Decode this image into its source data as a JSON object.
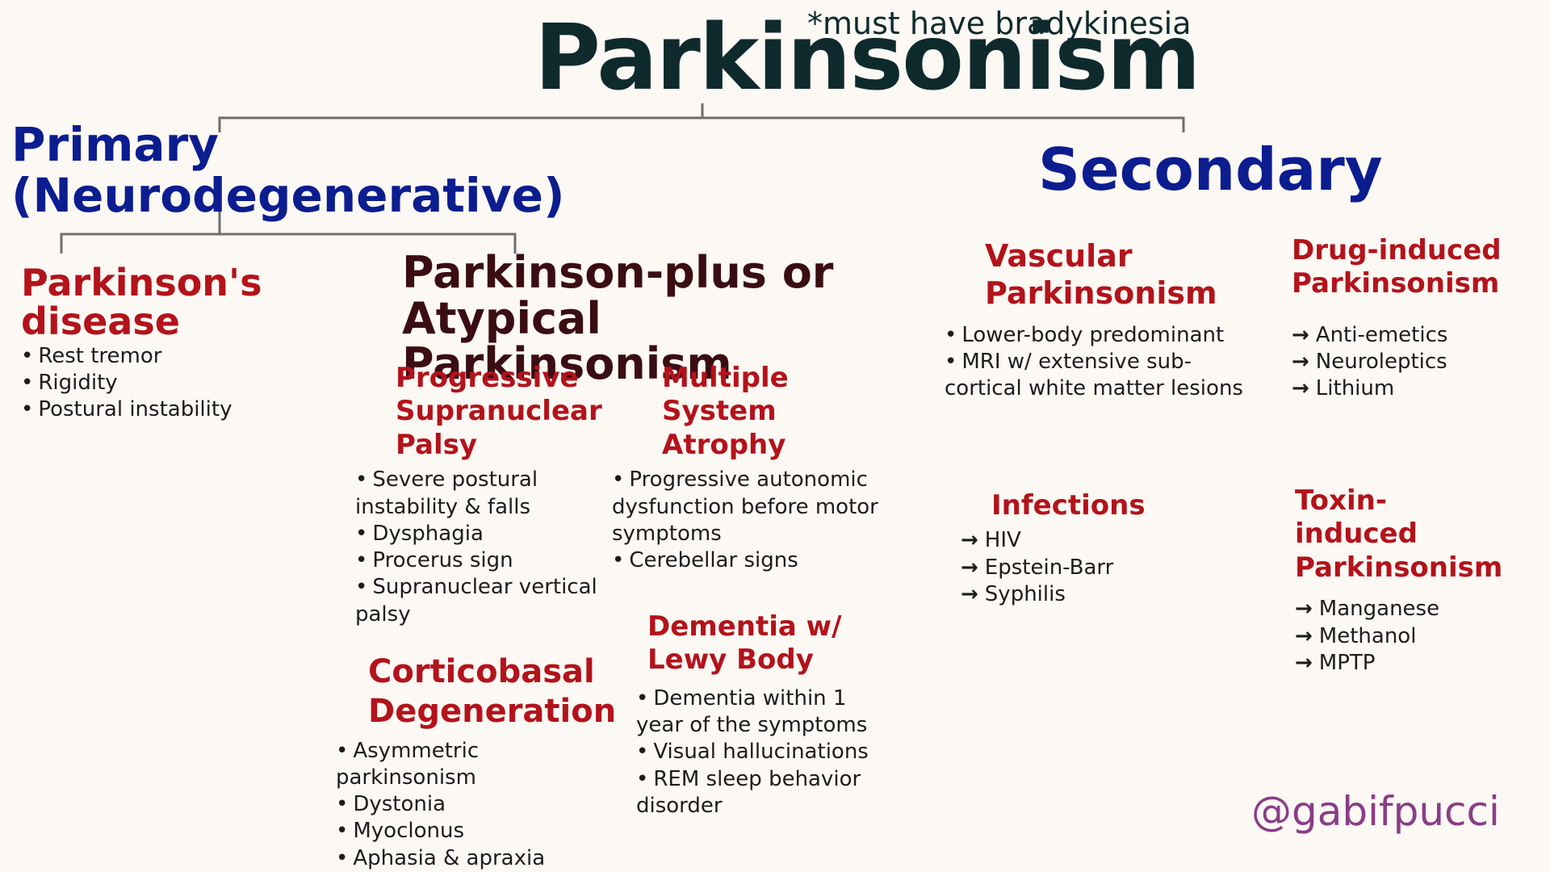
{
  "colors": {
    "title": "#0f2a2c",
    "primary_blue": "#0b1d8f",
    "category_red": "#b3131b",
    "section_dark": "#3a0d12",
    "body_text": "#1c1c1c",
    "connector": "#6e6e6e",
    "handle": "#8a3d86",
    "background": "#fcf8f4"
  },
  "title": "Parkinsonism",
  "note": "*must have bradykinesia",
  "primary": {
    "heading": "Primary (Neurodegenerative)",
    "parkinsons": {
      "title": "Parkinson's disease",
      "bullets": [
        "Rest tremor",
        "Rigidity",
        "Postural instability"
      ]
    },
    "plus": {
      "title": "Parkinson-plus or Atypical Parkinsonism",
      "psp": {
        "title": "Progressive Supranuclear Palsy",
        "bullets": [
          "Severe postural instability & falls",
          "Dysphagia",
          "Procerus sign",
          "Supranuclear vertical palsy"
        ]
      },
      "msa": {
        "title": "Multiple System Atrophy",
        "bullets": [
          "Progressive autonomic dysfunction before motor symptoms",
          "Cerebellar signs"
        ]
      },
      "cbd": {
        "title": "Corticobasal Degeneration",
        "bullets": [
          "Asymmetric parkinsonism",
          "Dystonia",
          "Myoclonus",
          "Aphasia & apraxia"
        ]
      },
      "dlb": {
        "title": "Dementia w/ Lewy Body",
        "bullets": [
          "Dementia within 1 year of the symptoms",
          "Visual hallucinations",
          "REM sleep behavior disorder"
        ]
      }
    }
  },
  "secondary": {
    "heading": "Secondary",
    "vascular": {
      "title": "Vascular Parkinsonism",
      "bullets": [
        "Lower-body predominant",
        "MRI w/ extensive sub-cortical white matter lesions"
      ]
    },
    "drug": {
      "title": "Drug-induced Parkinsonism",
      "bullets": [
        "Anti-emetics",
        "Neuroleptics",
        "Lithium"
      ]
    },
    "infections": {
      "title": "Infections",
      "bullets": [
        "HIV",
        "Epstein-Barr",
        "Syphilis"
      ]
    },
    "toxin": {
      "title": "Toxin-induced Parkinsonism",
      "bullets": [
        "Manganese",
        "Methanol",
        "MPTP"
      ]
    }
  },
  "handle": "@gabifpucci"
}
